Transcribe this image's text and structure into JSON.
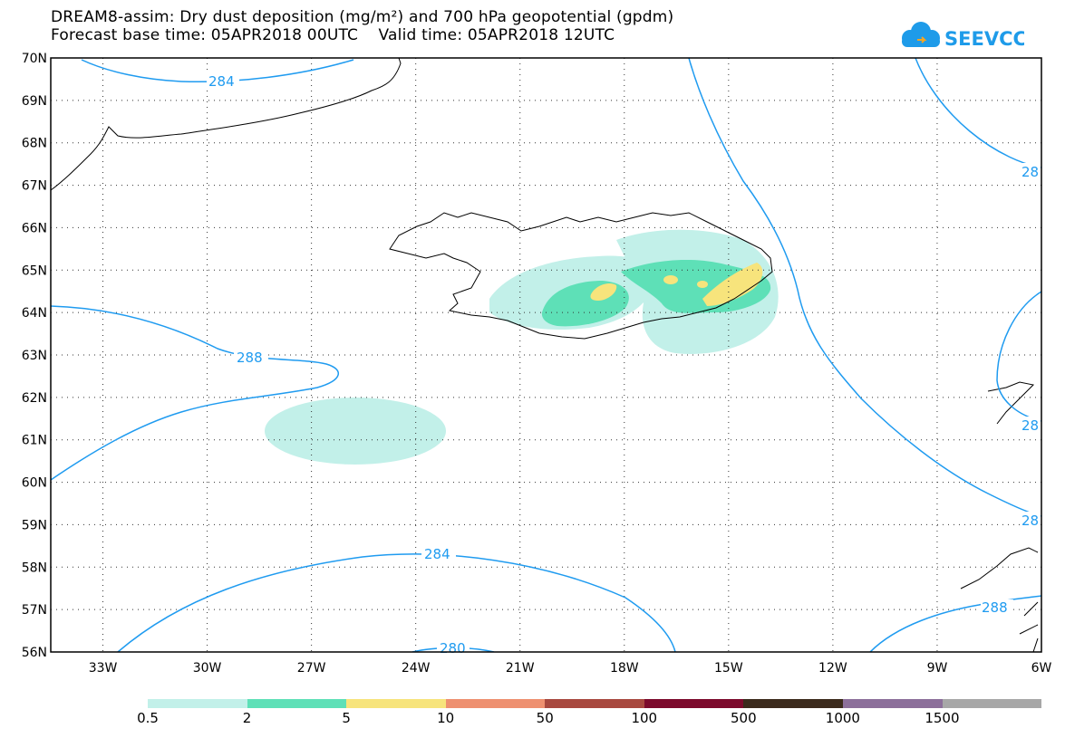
{
  "header": {
    "title_line1": "DREAM8-assim: Dry dust deposition (mg/m²) and 700 hPa geopotential (gpdm)",
    "title_line2": "Forecast base time: 05APR2018 00UTC    Valid time: 05APR2018 12UTC"
  },
  "logo": {
    "text": "SEEVCCC",
    "icon": "cloud-icon",
    "color": "#1e9be9"
  },
  "map": {
    "lat_labels": [
      "70N",
      "69N",
      "68N",
      "67N",
      "66N",
      "65N",
      "64N",
      "63N",
      "62N",
      "61N",
      "60N",
      "59N",
      "58N",
      "57N",
      "56N"
    ],
    "lon_labels": [
      "33W",
      "30W",
      "27W",
      "24W",
      "21W",
      "18W",
      "15W",
      "12W",
      "9W",
      "6W"
    ],
    "lat_range": [
      56,
      70
    ],
    "lon_range": [
      -34.5,
      -6
    ],
    "grid": "dotted",
    "contour_color": "#1f9bf0",
    "contour_labels": [
      "284",
      "288",
      "284",
      "280",
      "28",
      "28",
      "28",
      "288"
    ]
  },
  "colorbar": {
    "colors": [
      "#c2f0e9",
      "#5ee0b7",
      "#f7e47c",
      "#ee9070",
      "#a8483f",
      "#7c0a2c",
      "#3b2a1c",
      "#8c6f9a",
      "#a7a7a7"
    ],
    "labels": [
      "0.5",
      "2",
      "5",
      "10",
      "50",
      "100",
      "500",
      "1000",
      "1500"
    ]
  }
}
